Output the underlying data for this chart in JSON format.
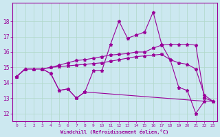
{
  "x": [
    0,
    1,
    2,
    3,
    4,
    5,
    6,
    7,
    8,
    9,
    10,
    11,
    12,
    13,
    14,
    15,
    16,
    17,
    18,
    19,
    20,
    21,
    22,
    23
  ],
  "s1": [
    14.4,
    14.9,
    14.9,
    14.9,
    14.6,
    13.5,
    13.6,
    13.0,
    13.4,
    14.8,
    14.8,
    16.5,
    18.0,
    16.9,
    17.1,
    17.3,
    18.6,
    16.5,
    15.5,
    13.7,
    13.5,
    12.0,
    12.8,
    12.8
  ],
  "s2": [
    14.4,
    14.9,
    14.9,
    14.9,
    15.0,
    15.15,
    15.3,
    15.45,
    15.5,
    15.6,
    15.7,
    15.8,
    15.85,
    15.9,
    16.0,
    16.0,
    16.25,
    16.45,
    16.5,
    16.5,
    16.5,
    16.45,
    13.0,
    12.8
  ],
  "s3": [
    14.4,
    14.9,
    14.9,
    14.9,
    15.0,
    15.05,
    15.1,
    15.15,
    15.2,
    15.25,
    15.3,
    15.4,
    15.5,
    15.6,
    15.7,
    15.75,
    15.8,
    15.85,
    15.5,
    15.3,
    15.2,
    14.9,
    13.2,
    12.8
  ],
  "s4": [
    14.4,
    14.9,
    14.9,
    14.9,
    14.6,
    13.5,
    13.6,
    13.0,
    13.4,
    null,
    null,
    null,
    null,
    null,
    null,
    null,
    null,
    null,
    null,
    null,
    null,
    null,
    12.8,
    null
  ],
  "line_color": "#990099",
  "bg_color": "#cce8f0",
  "grid_color": "#b0d8c8",
  "xlabel": "Windchill (Refroidissement éolien,°C)",
  "ylim": [
    11.5,
    19.2
  ],
  "xlim": [
    -0.5,
    23.5
  ],
  "yticks": [
    12,
    13,
    14,
    15,
    16,
    17,
    18
  ],
  "xticks": [
    0,
    1,
    2,
    3,
    4,
    5,
    6,
    7,
    8,
    9,
    10,
    11,
    12,
    13,
    14,
    15,
    16,
    17,
    18,
    19,
    20,
    21,
    22,
    23
  ]
}
